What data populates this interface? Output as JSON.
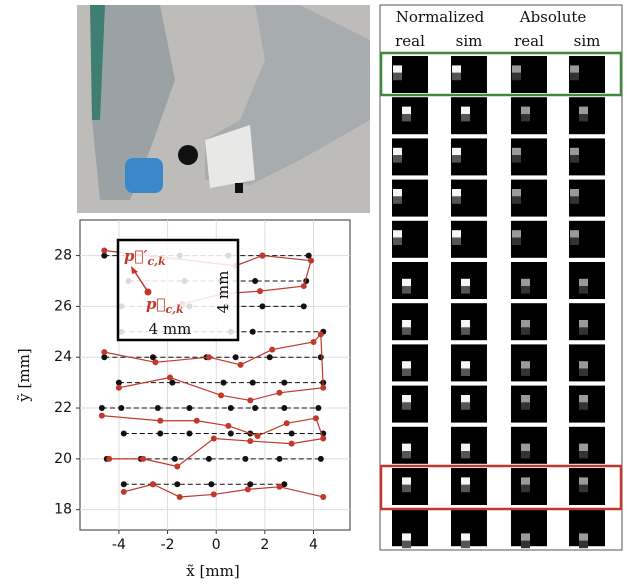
{
  "tactile_panel": {
    "group_labels": [
      "Normalized",
      "Absolute"
    ],
    "column_labels": [
      "real",
      "sim",
      "real",
      "sim"
    ]
  },
  "chart_data": {
    "type": "line",
    "xlabel": "x̃ [mm]",
    "ylabel": "ỹ [mm]",
    "xlim": [
      -5.6,
      5.5
    ],
    "ylim": [
      17.2,
      29.4
    ],
    "xticks": [
      -4,
      -2,
      0,
      2,
      4
    ],
    "yticks": [
      18,
      20,
      22,
      24,
      26,
      28
    ],
    "grid": true,
    "annotations": {
      "target": {
        "symbol": "p⃗′",
        "subscript": "c,k"
      },
      "actual": {
        "symbol": "p⃗",
        "subscript": "c,k"
      },
      "width": "4 mm",
      "height": "4 mm"
    },
    "series": [
      {
        "color": "#111111",
        "line_style": "dashed",
        "x": [
          -4.6,
          -1.5,
          0.5,
          1.9,
          3.8,
          null,
          -3.6,
          -1.3,
          0.2,
          1.6,
          3.7,
          null,
          -3.9,
          -1.1,
          0.4,
          1.9,
          3.6,
          null,
          -3.9,
          -1.2,
          0.6,
          1.5,
          4.4,
          null,
          -4.6,
          -2.6,
          -0.4,
          0.8,
          2.2,
          4.3,
          null,
          -4.0,
          -1.8,
          0.3,
          1.5,
          2.8,
          4.4,
          null,
          -4.7,
          -3.9,
          -2.4,
          -1.1,
          0.6,
          1.6,
          2.8,
          4.2,
          null,
          -3.8,
          -2.3,
          -1.1,
          0.6,
          1.4,
          3.1,
          4.4,
          null,
          -4.5,
          -3.1,
          -1.7,
          -0.3,
          1.2,
          2.6,
          4.3,
          null,
          -3.8,
          -2.6,
          -1.6,
          -0.2,
          1.4,
          2.8
        ],
        "values": [
          28,
          28,
          28,
          28,
          28,
          null,
          27,
          27,
          27,
          27,
          27,
          null,
          26,
          26,
          26,
          26,
          26,
          null,
          25,
          25,
          25,
          25,
          25,
          null,
          24,
          24,
          24,
          24,
          24,
          24,
          null,
          23,
          23,
          23,
          23,
          23,
          23,
          null,
          22,
          22,
          22,
          22,
          22,
          22,
          22,
          22,
          null,
          21,
          21,
          21,
          21,
          21,
          21,
          21,
          null,
          20,
          20,
          20,
          20,
          20,
          20,
          20,
          null,
          19,
          19,
          19,
          19,
          19,
          19
        ]
      },
      {
        "color": "#c0392b",
        "line_style": "solid",
        "x": [
          -4.6,
          0.8,
          1.9,
          3.9,
          3.6,
          1.8,
          0.3,
          -1.4,
          null,
          -4.6,
          -2.5,
          -0.3,
          1.0,
          2.3,
          4.0,
          4.3,
          4.4,
          2.6,
          1.4,
          0.2,
          -1.9,
          -4.0,
          null,
          -4.7,
          -2.3,
          -0.8,
          0.5,
          1.7,
          2.9,
          4.1,
          4.4,
          3.1,
          1.4,
          -0.1,
          -1.6,
          -3.0,
          -4.4,
          null,
          -3.8,
          -2.6,
          -1.5,
          -0.1,
          1.3,
          2.6,
          4.4
        ],
        "values": [
          28.2,
          27.6,
          28.0,
          27.8,
          26.8,
          26.6,
          26.5,
          26.1,
          null,
          24.2,
          23.8,
          24.0,
          23.7,
          24.3,
          24.6,
          24.9,
          22.8,
          22.6,
          22.3,
          22.5,
          23.2,
          22.8,
          null,
          21.7,
          21.5,
          21.5,
          21.3,
          20.9,
          21.4,
          21.6,
          20.8,
          20.6,
          20.7,
          20.8,
          19.7,
          20.0,
          20.0,
          null,
          18.7,
          19.0,
          18.5,
          18.6,
          18.8,
          18.9,
          18.5
        ]
      }
    ]
  }
}
